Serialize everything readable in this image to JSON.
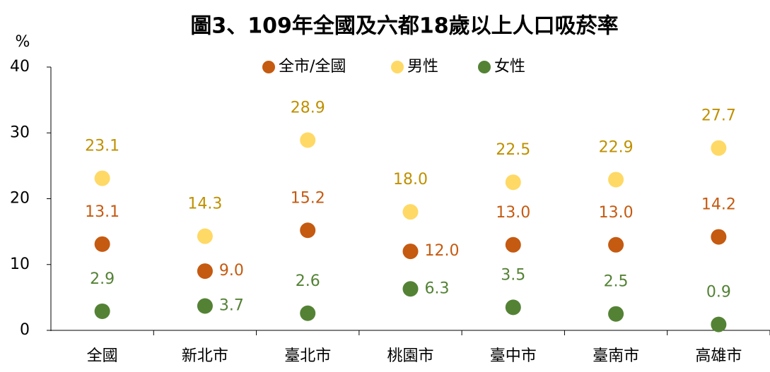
{
  "chart_data": {
    "type": "scatter",
    "title": "圖3、109年全國及六都18歲以上人口吸菸率",
    "y_label": "%",
    "categories": [
      "全國",
      "新北市",
      "臺北市",
      "桃園市",
      "臺中市",
      "臺南市",
      "高雄市"
    ],
    "series": [
      {
        "name": "全市/全國",
        "color": "#c55a11",
        "label_color": "#c55a11",
        "values": [
          13.1,
          9.0,
          15.2,
          12.0,
          13.0,
          13.0,
          14.2
        ],
        "value_labels": [
          "13.1",
          "9.0",
          "15.2",
          "12.0",
          "13.0",
          "13.0",
          "14.2"
        ]
      },
      {
        "name": "男性",
        "color": "#ffd966",
        "label_color": "#bf9000",
        "values": [
          23.1,
          14.3,
          28.9,
          18.0,
          22.5,
          22.9,
          27.7
        ],
        "value_labels": [
          "23.1",
          "14.3",
          "28.9",
          "18.0",
          "22.5",
          "22.9",
          "27.7"
        ]
      },
      {
        "name": "女性",
        "color": "#548235",
        "label_color": "#548235",
        "values": [
          2.9,
          3.7,
          2.6,
          6.3,
          3.5,
          2.5,
          0.9
        ],
        "value_labels": [
          "2.9",
          "3.7",
          "2.6",
          "6.3",
          "3.5",
          "2.5",
          "0.9"
        ]
      }
    ],
    "ylim": [
      0,
      40
    ],
    "yticks": [
      0,
      10,
      20,
      30,
      40
    ],
    "grid": false,
    "legend": "top"
  }
}
